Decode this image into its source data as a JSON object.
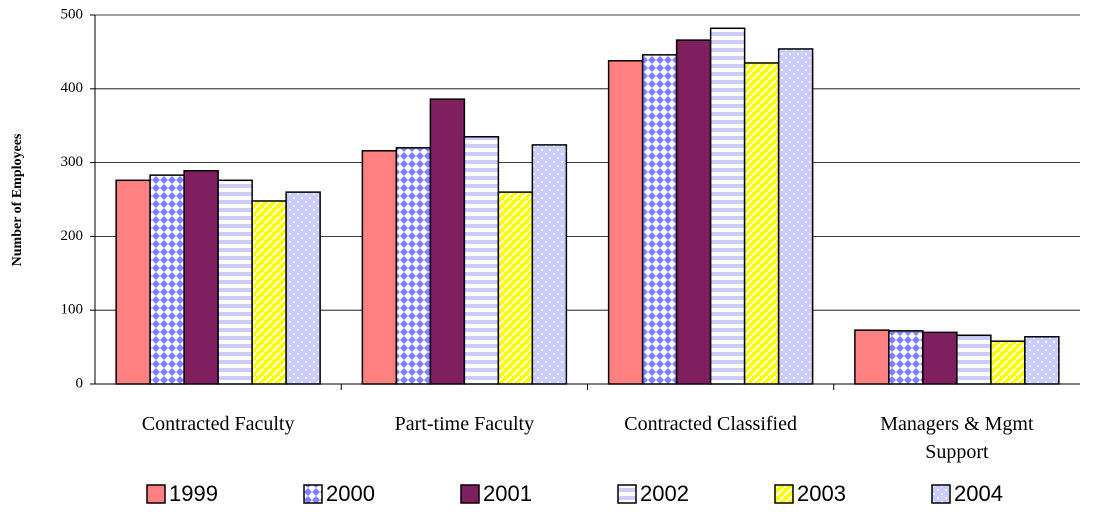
{
  "chart_data": {
    "type": "bar",
    "y_label": "Number of Employees",
    "categories": [
      "Contracted Faculty",
      "Part-time Faculty",
      "Contracted Classified",
      "Managers & Mgmt Support"
    ],
    "series": [
      {
        "name": "1999",
        "color": "#ff8080",
        "values": [
          276,
          316,
          438,
          73
        ]
      },
      {
        "name": "2000",
        "color": "#8080ff",
        "values": [
          283,
          320,
          446,
          72
        ]
      },
      {
        "name": "2001",
        "color": "#7f1f5f",
        "values": [
          289,
          386,
          466,
          70
        ]
      },
      {
        "name": "2002",
        "color": "#ccccff",
        "values": [
          276,
          335,
          482,
          66
        ]
      },
      {
        "name": "2003",
        "color": "#ffff00",
        "values": [
          248,
          260,
          435,
          58
        ]
      },
      {
        "name": "2004",
        "color": "#ccccff",
        "values": [
          260,
          324,
          454,
          64
        ]
      }
    ],
    "ylim": [
      0,
      500
    ],
    "yticks": [
      0,
      100,
      200,
      300,
      400,
      500
    ],
    "grid": true
  }
}
